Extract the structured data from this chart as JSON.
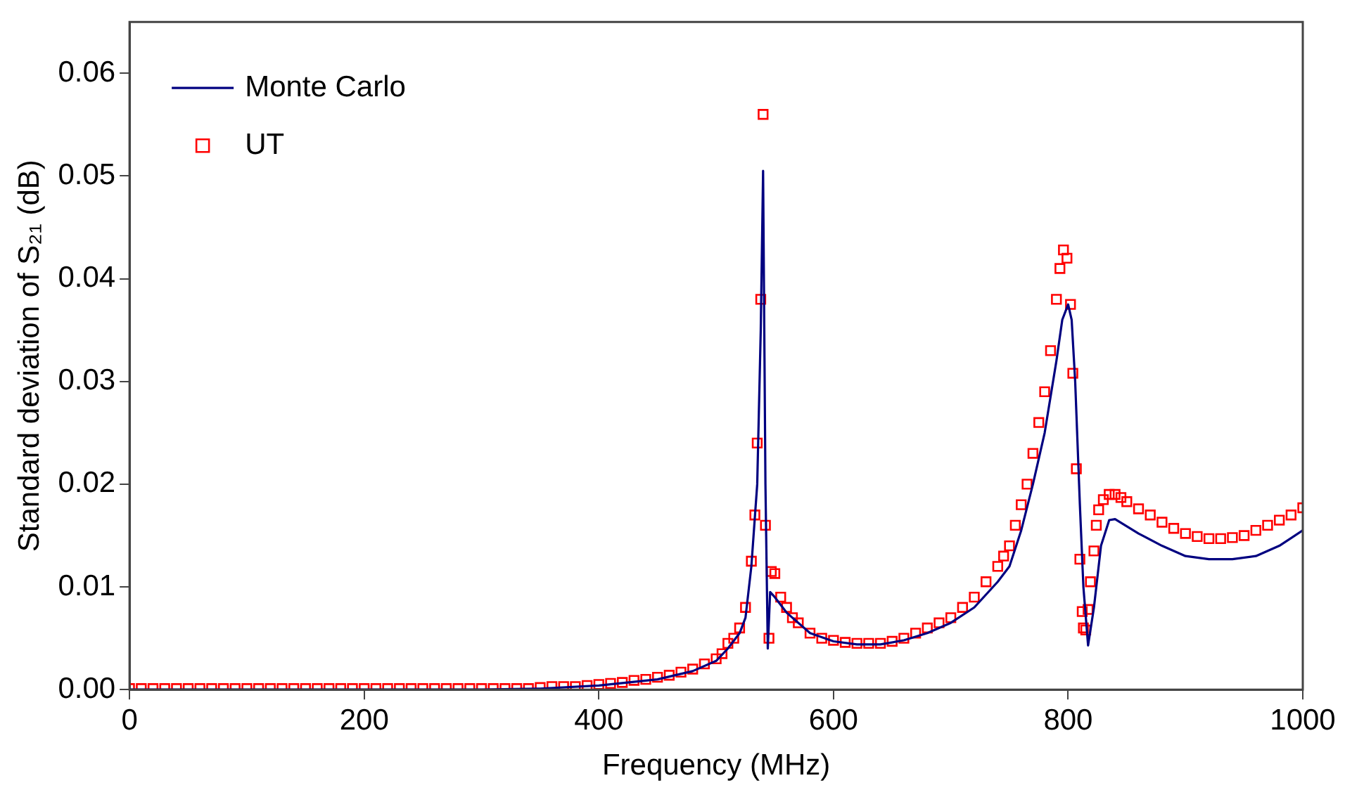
{
  "chart_data": {
    "type": "scatter",
    "xlabel": "Frequency (MHz)",
    "ylabel": "Standard deviation of S₂₁ (dB)",
    "xlim": [
      0,
      1000
    ],
    "xticks": [
      0,
      200,
      400,
      600,
      800,
      1000
    ],
    "ylim": [
      0,
      0.065
    ],
    "yticks": [
      {
        "value": 0,
        "label": "0.00"
      },
      0.01,
      0.02,
      0.03,
      0.04,
      0.05,
      0.06
    ],
    "grid": false,
    "legend": "top left",
    "series": [
      {
        "name": "Monte Carlo",
        "type": "line",
        "color": "#000080",
        "marker": "none",
        "line_style": "solid",
        "x": [
          0,
          100,
          200,
          300,
          350,
          400,
          450,
          480,
          500,
          510,
          520,
          525,
          530,
          535,
          538,
          540,
          542,
          544,
          546,
          550,
          560,
          580,
          600,
          620,
          640,
          660,
          680,
          700,
          720,
          740,
          750,
          760,
          770,
          780,
          790,
          795,
          800,
          803,
          806,
          810,
          813,
          817,
          822,
          828,
          835,
          840,
          860,
          880,
          900,
          920,
          940,
          960,
          980,
          1000
        ],
        "values": [
          0,
          0,
          0,
          0,
          0.0001,
          0.0004,
          0.001,
          0.0018,
          0.0028,
          0.004,
          0.0055,
          0.007,
          0.012,
          0.02,
          0.035,
          0.0505,
          0.02,
          0.004,
          0.0095,
          0.009,
          0.0075,
          0.0055,
          0.0047,
          0.0044,
          0.0044,
          0.0048,
          0.0055,
          0.0065,
          0.008,
          0.0105,
          0.012,
          0.0155,
          0.02,
          0.025,
          0.032,
          0.036,
          0.0375,
          0.036,
          0.03,
          0.018,
          0.01,
          0.0043,
          0.008,
          0.014,
          0.0165,
          0.0166,
          0.0152,
          0.014,
          0.013,
          0.0127,
          0.0127,
          0.013,
          0.014,
          0.0155
        ]
      },
      {
        "name": "UT",
        "type": "scatter",
        "color": "#ff0000",
        "marker": "square",
        "x": [
          0,
          10,
          20,
          30,
          40,
          50,
          60,
          70,
          80,
          90,
          100,
          110,
          120,
          130,
          140,
          150,
          160,
          170,
          180,
          190,
          200,
          210,
          220,
          230,
          240,
          250,
          260,
          270,
          280,
          290,
          300,
          310,
          320,
          330,
          340,
          350,
          360,
          370,
          380,
          390,
          400,
          410,
          420,
          430,
          440,
          450,
          460,
          470,
          480,
          490,
          500,
          505,
          510,
          515,
          520,
          525,
          530,
          533,
          535,
          538,
          540,
          542,
          545,
          547,
          550,
          555,
          560,
          565,
          570,
          580,
          590,
          600,
          610,
          620,
          630,
          640,
          650,
          660,
          670,
          680,
          690,
          700,
          710,
          720,
          730,
          740,
          745,
          750,
          755,
          760,
          765,
          770,
          775,
          780,
          785,
          790,
          793,
          796,
          799,
          802,
          804,
          807,
          810,
          812,
          813,
          815,
          817,
          819,
          822,
          824,
          826,
          830,
          835,
          840,
          845,
          850,
          860,
          870,
          880,
          890,
          900,
          910,
          920,
          930,
          940,
          950,
          960,
          970,
          980,
          990,
          1000
        ],
        "values": [
          0.0001,
          0.0001,
          0.0001,
          0.0001,
          0.0001,
          0.0001,
          0.0001,
          0.0001,
          0.0001,
          0.0001,
          0.0001,
          0.0001,
          0.0001,
          0.0001,
          0.0001,
          0.0001,
          0.0001,
          0.0001,
          0.0001,
          0.0001,
          0.0001,
          0.0001,
          0.0001,
          0.0001,
          0.0001,
          0.0001,
          0.0001,
          0.0001,
          0.0001,
          0.0001,
          0.0001,
          0.0001,
          0.0001,
          0.0001,
          0.0001,
          0.0002,
          0.0003,
          0.0003,
          0.0003,
          0.0004,
          0.0005,
          0.0006,
          0.0007,
          0.0009,
          0.001,
          0.0012,
          0.0014,
          0.0017,
          0.002,
          0.0025,
          0.003,
          0.0035,
          0.0045,
          0.005,
          0.006,
          0.008,
          0.0125,
          0.017,
          0.024,
          0.038,
          0.056,
          0.016,
          0.005,
          0.0115,
          0.0113,
          0.009,
          0.008,
          0.007,
          0.0065,
          0.0055,
          0.005,
          0.0048,
          0.0046,
          0.0045,
          0.0045,
          0.0045,
          0.0047,
          0.005,
          0.0055,
          0.006,
          0.0065,
          0.007,
          0.008,
          0.009,
          0.0105,
          0.012,
          0.013,
          0.014,
          0.016,
          0.018,
          0.02,
          0.023,
          0.026,
          0.029,
          0.033,
          0.038,
          0.041,
          0.0428,
          0.042,
          0.0375,
          0.0308,
          0.0215,
          0.0127,
          0.0076,
          0.006,
          0.0058,
          0.0078,
          0.0105,
          0.0135,
          0.016,
          0.0175,
          0.0185,
          0.019,
          0.019,
          0.0187,
          0.0183,
          0.0176,
          0.017,
          0.0163,
          0.0157,
          0.0152,
          0.0149,
          0.0147,
          0.0147,
          0.0148,
          0.015,
          0.0155,
          0.016,
          0.0165,
          0.017,
          0.0177
        ]
      }
    ]
  }
}
